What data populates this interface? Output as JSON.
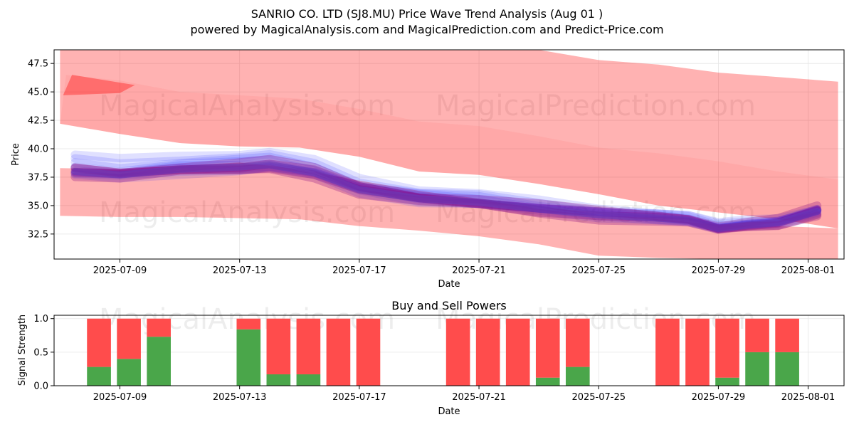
{
  "chart_data": [
    {
      "type": "area",
      "title_line1": "SANRIO CO. LTD (SJ8.MU) Price Wave Trend Analysis (Aug 01 )",
      "title_line2": "powered by MagicalAnalysis.com and MagicalPrediction.com and Predict-Price.com",
      "xlabel": "Date",
      "ylabel": "Price",
      "ylim": [
        30.3,
        48.7
      ],
      "yticks": [
        "32.5",
        "35.0",
        "37.5",
        "40.0",
        "42.5",
        "45.0",
        "47.5"
      ],
      "ytick_values": [
        32.5,
        35.0,
        37.5,
        40.0,
        42.5,
        45.0,
        47.5
      ],
      "xticks": [
        "2025-07-09",
        "2025-07-13",
        "2025-07-17",
        "2025-07-21",
        "2025-07-25",
        "2025-07-29",
        "2025-08-01"
      ],
      "xtick_days": [
        9,
        13,
        17,
        21,
        25,
        29,
        32
      ],
      "xlim_days": [
        6.8,
        33.2
      ],
      "watermarks": [
        "MagicalAnalysis.com",
        "MagicalPrediction.com",
        "MagicalAnalysis.com",
        "MagicalPrediction.com"
      ],
      "colors": {
        "band": "#ff0000",
        "wave_blue": "#0000ff",
        "wave_purple": "#800080",
        "grid": "#e5e5e5"
      },
      "series": [
        {
          "name": "upper-band-top",
          "x": [
            7,
            9,
            11,
            13,
            15,
            17,
            19,
            21,
            23,
            25,
            27,
            29,
            31,
            33
          ],
          "y": [
            48.7,
            48.7,
            48.7,
            48.7,
            48.7,
            48.7,
            48.7,
            48.7,
            48.7,
            47.8,
            47.4,
            46.7,
            46.3,
            45.9
          ]
        },
        {
          "name": "upper-band-bottom",
          "x": [
            7,
            9,
            11,
            13,
            15,
            17,
            19,
            21,
            23,
            25,
            27,
            29,
            31,
            33
          ],
          "y": [
            42.2,
            41.3,
            40.5,
            40.2,
            40.1,
            39.3,
            38.0,
            37.7,
            36.9,
            36.0,
            35.0,
            34.4,
            33.8,
            33.0
          ]
        },
        {
          "name": "middle-band-top",
          "x": [
            7.2,
            9,
            11,
            13,
            15,
            17,
            19,
            21,
            23,
            25,
            27,
            29,
            31,
            33
          ],
          "y": [
            46.5,
            46.0,
            45.0,
            44.7,
            44.4,
            43.5,
            42.4,
            42.0,
            41.1,
            40.1,
            39.6,
            38.9,
            38.0,
            37.3
          ]
        },
        {
          "name": "lower-band-bottom",
          "x": [
            7,
            9,
            11,
            13,
            15,
            17,
            19,
            21,
            23,
            25,
            27,
            29,
            31,
            33
          ],
          "y": [
            34.1,
            34.0,
            34.0,
            33.9,
            33.8,
            33.2,
            32.8,
            32.3,
            31.6,
            30.6,
            30.4,
            30.3,
            30.3,
            30.3
          ]
        },
        {
          "name": "lower-band-top",
          "x": [
            7,
            9,
            11,
            13,
            15,
            17,
            19,
            21,
            23,
            25,
            27,
            29,
            31,
            33
          ],
          "y": [
            38.3,
            38.2,
            38.5,
            38.8,
            38.2,
            37.2,
            36.3,
            35.6,
            35.0,
            34.2,
            33.8,
            33.3,
            33.2,
            33.0
          ]
        },
        {
          "name": "wave-forecast",
          "x": [
            7.5,
            9,
            11,
            13,
            14,
            15.5,
            17,
            19,
            21,
            23,
            25,
            27,
            28,
            29,
            30,
            31,
            32.3
          ],
          "y": [
            38.0,
            37.7,
            38.2,
            38.4,
            38.6,
            37.9,
            36.4,
            35.6,
            35.3,
            34.7,
            34.2,
            33.9,
            33.7,
            33.0,
            33.3,
            33.5,
            34.5
          ]
        }
      ]
    },
    {
      "type": "bar",
      "title": "Buy and Sell Powers",
      "xlabel": "Date",
      "ylabel": "Signal Strength",
      "ylim": [
        0,
        1.05
      ],
      "yticks": [
        "0.0",
        "0.5",
        "1.0"
      ],
      "ytick_values": [
        0,
        0.5,
        1.0
      ],
      "xticks": [
        "2025-07-09",
        "2025-07-13",
        "2025-07-17",
        "2025-07-21",
        "2025-07-25",
        "2025-07-29",
        "2025-08-01"
      ],
      "xtick_days": [
        9,
        13,
        17,
        21,
        25,
        29,
        32
      ],
      "xlim_days": [
        6.8,
        33.2
      ],
      "colors": {
        "buy": "#4aa64a",
        "sell": "#ff4c4c"
      },
      "days": [
        8.3,
        9.3,
        10.3,
        13.3,
        14.3,
        15.3,
        16.3,
        17.3,
        20.3,
        21.3,
        22.3,
        23.3,
        24.3,
        27.3,
        28.3,
        29.3,
        30.3,
        31.3
      ],
      "buy": [
        0.28,
        0.4,
        0.73,
        0.84,
        0.17,
        0.17,
        0.0,
        0.0,
        0.0,
        0.0,
        0.0,
        0.12,
        0.28,
        0.0,
        0.0,
        0.12,
        0.5,
        0.5
      ],
      "sell": [
        0.72,
        0.6,
        0.27,
        0.16,
        0.83,
        0.83,
        1.0,
        1.0,
        1.0,
        1.0,
        1.0,
        0.88,
        0.72,
        1.0,
        1.0,
        0.88,
        0.5,
        0.5
      ]
    }
  ]
}
